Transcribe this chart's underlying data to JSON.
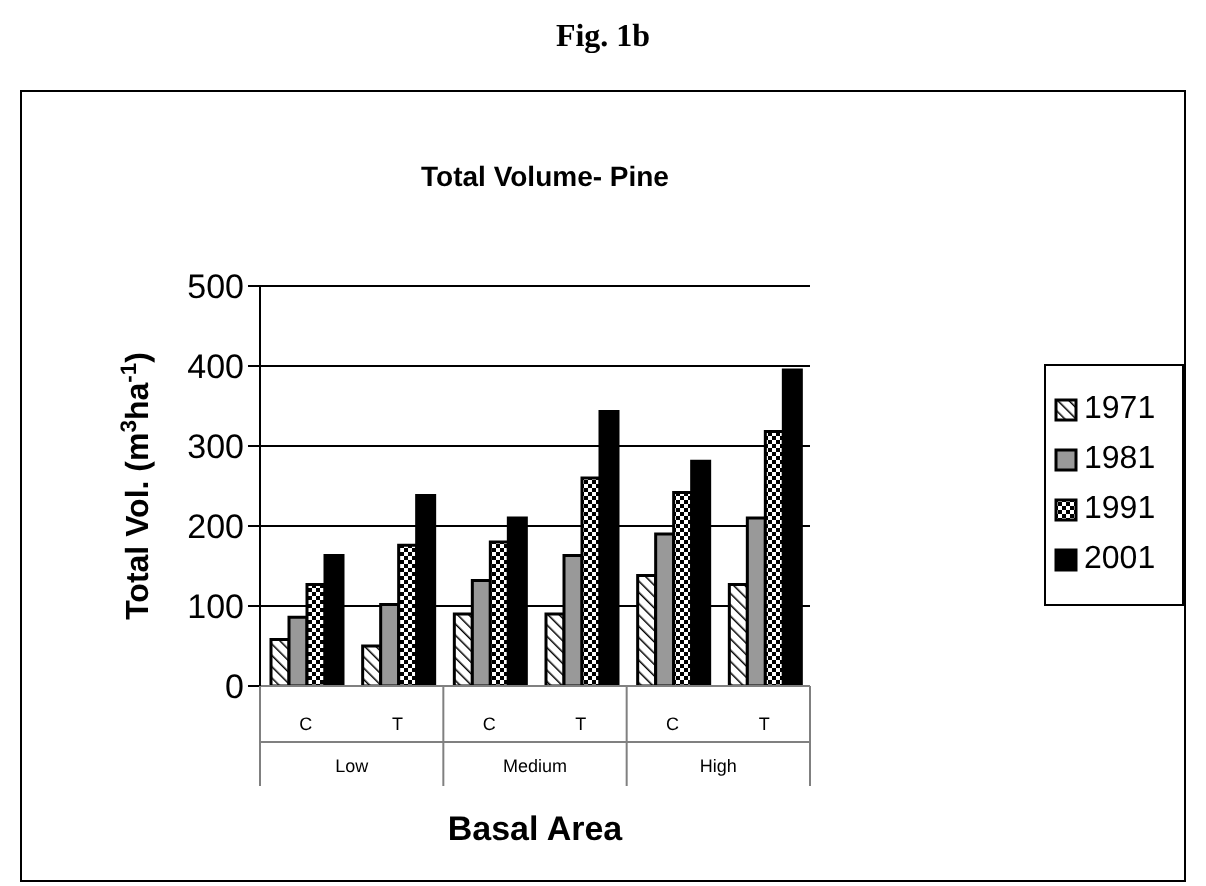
{
  "chart_data": {
    "type": "bar",
    "title": "Fig. 1b",
    "subtitle": "Total Volume- Pine",
    "xlabel": "Basal Area",
    "ylabel": "Total Vol. (m$^{3}$ha$^{-1}$)",
    "categories": [
      "C",
      "T",
      "C",
      "T",
      "C",
      "T"
    ],
    "annotations": [
      "Low",
      "Medium",
      "High"
    ],
    "series": [
      {
        "name": "1971",
        "color": "#000000",
        "values": [
          58,
          50,
          90,
          90,
          138,
          127
        ]
      },
      {
        "name": "1981",
        "color": "#999999",
        "values": [
          86,
          102,
          132,
          163,
          190,
          210
        ]
      },
      {
        "name": "1991",
        "color": "#000000",
        "values": [
          127,
          176,
          180,
          260,
          242,
          318
        ]
      },
      {
        "name": "2001",
        "color": "#000000",
        "values": [
          163,
          238,
          210,
          343,
          281,
          395
        ]
      }
    ],
    "ylim": [
      0,
      500
    ],
    "yticks": [
      0,
      100,
      200,
      300,
      400,
      500
    ],
    "grid": "y",
    "legend": "right"
  }
}
